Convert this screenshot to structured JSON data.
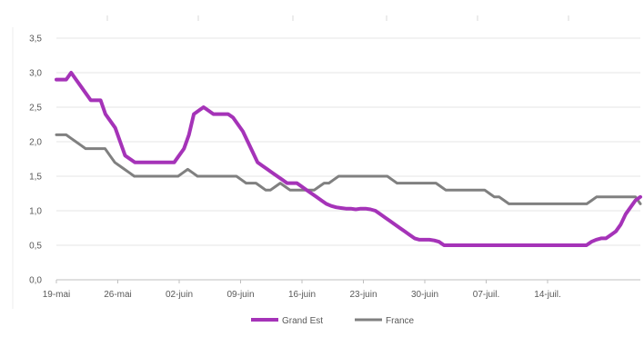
{
  "chart_data": {
    "type": "line",
    "title": "",
    "xlabel": "",
    "ylabel": "",
    "ylim": [
      0,
      3.5
    ],
    "y_ticks": [
      "0,0",
      "0,5",
      "1,0",
      "1,5",
      "2,0",
      "2,5",
      "3,0",
      "3,5"
    ],
    "x_tick_labels": [
      "19-mai",
      "26-mai",
      "02-juin",
      "09-juin",
      "16-juin",
      "23-juin",
      "30-juin",
      "07-juil.",
      "14-juil."
    ],
    "grid": true,
    "legend_position": "bottom",
    "series": [
      {
        "name": "Grand Est",
        "color": "#a533b8",
        "values": [
          2.9,
          2.9,
          2.9,
          3.0,
          2.9,
          2.8,
          2.7,
          2.6,
          2.6,
          2.6,
          2.4,
          2.3,
          2.2,
          2.0,
          1.8,
          1.75,
          1.7,
          1.7,
          1.7,
          1.7,
          1.7,
          1.7,
          1.7,
          1.7,
          1.7,
          1.8,
          1.9,
          2.1,
          2.4,
          2.45,
          2.5,
          2.45,
          2.4,
          2.4,
          2.4,
          2.4,
          2.35,
          2.25,
          2.15,
          2.0,
          1.85,
          1.7,
          1.65,
          1.6,
          1.55,
          1.5,
          1.45,
          1.4,
          1.4,
          1.4,
          1.35,
          1.3,
          1.25,
          1.2,
          1.15,
          1.1,
          1.07,
          1.05,
          1.04,
          1.03,
          1.03,
          1.02,
          1.03,
          1.03,
          1.02,
          1.0,
          0.95,
          0.9,
          0.85,
          0.8,
          0.75,
          0.7,
          0.65,
          0.6,
          0.58,
          0.58,
          0.58,
          0.57,
          0.55,
          0.5,
          0.5,
          0.5,
          0.5,
          0.5,
          0.5,
          0.5,
          0.5,
          0.5,
          0.5,
          0.5,
          0.5,
          0.5,
          0.5,
          0.5,
          0.5,
          0.5,
          0.5,
          0.5,
          0.5,
          0.5,
          0.5,
          0.5,
          0.5,
          0.5,
          0.5,
          0.5,
          0.5,
          0.5,
          0.5,
          0.55,
          0.58,
          0.6,
          0.6,
          0.65,
          0.7,
          0.8,
          0.95,
          1.05,
          1.15,
          1.2
        ]
      },
      {
        "name": "France",
        "color": "#808080",
        "values": [
          2.1,
          2.1,
          2.1,
          2.05,
          2.0,
          1.95,
          1.9,
          1.9,
          1.9,
          1.9,
          1.9,
          1.8,
          1.7,
          1.65,
          1.6,
          1.55,
          1.5,
          1.5,
          1.5,
          1.5,
          1.5,
          1.5,
          1.5,
          1.5,
          1.5,
          1.5,
          1.55,
          1.6,
          1.55,
          1.5,
          1.5,
          1.5,
          1.5,
          1.5,
          1.5,
          1.5,
          1.5,
          1.5,
          1.45,
          1.4,
          1.4,
          1.4,
          1.35,
          1.3,
          1.3,
          1.35,
          1.4,
          1.35,
          1.3,
          1.3,
          1.3,
          1.3,
          1.3,
          1.3,
          1.35,
          1.4,
          1.4,
          1.45,
          1.5,
          1.5,
          1.5,
          1.5,
          1.5,
          1.5,
          1.5,
          1.5,
          1.5,
          1.5,
          1.5,
          1.45,
          1.4,
          1.4,
          1.4,
          1.4,
          1.4,
          1.4,
          1.4,
          1.4,
          1.4,
          1.35,
          1.3,
          1.3,
          1.3,
          1.3,
          1.3,
          1.3,
          1.3,
          1.3,
          1.3,
          1.25,
          1.2,
          1.2,
          1.15,
          1.1,
          1.1,
          1.1,
          1.1,
          1.1,
          1.1,
          1.1,
          1.1,
          1.1,
          1.1,
          1.1,
          1.1,
          1.1,
          1.1,
          1.1,
          1.1,
          1.1,
          1.15,
          1.2,
          1.2,
          1.2,
          1.2,
          1.2,
          1.2,
          1.2,
          1.2,
          1.2,
          1.1
        ]
      }
    ]
  }
}
